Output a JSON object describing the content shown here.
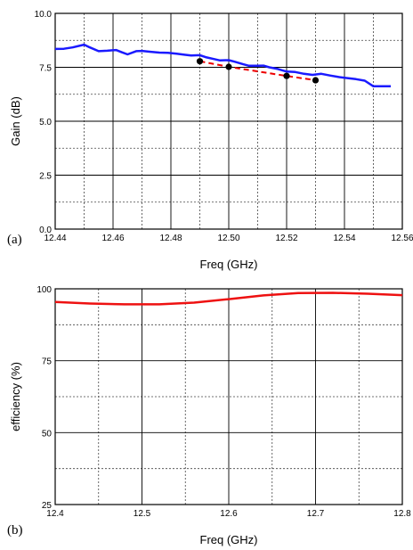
{
  "chart_data": [
    {
      "type": "line",
      "panel_label": "(a)",
      "xlabel": "Freq (GHz)",
      "ylabel": "Gain (dB)",
      "xlim": [
        12.44,
        12.56
      ],
      "ylim": [
        0.0,
        10.0
      ],
      "x_ticks": [
        "12.44",
        "12.46",
        "12.48",
        "12.50",
        "12.52",
        "12.54",
        "12.56"
      ],
      "y_ticks": [
        "0.0",
        "2.5",
        "5.0",
        "7.5",
        "10.0"
      ],
      "grid": true,
      "series": [
        {
          "style": "solid",
          "color": "#1a1aff",
          "x": [
            12.44,
            12.443,
            12.446,
            12.45,
            12.452,
            12.455,
            12.458,
            12.461,
            12.463,
            12.465,
            12.468,
            12.47,
            12.473,
            12.476,
            12.479,
            12.482,
            12.485,
            12.487,
            12.49,
            12.492,
            12.495,
            12.497,
            12.5,
            12.502,
            12.505,
            12.507,
            12.51,
            12.512,
            12.514,
            12.517,
            12.52,
            12.523,
            12.526,
            12.529,
            12.532,
            12.535,
            12.538,
            12.541,
            12.544,
            12.547,
            12.55,
            12.553,
            12.556
          ],
          "y": [
            8.35,
            8.36,
            8.42,
            8.55,
            8.42,
            8.25,
            8.27,
            8.3,
            8.2,
            8.1,
            8.25,
            8.26,
            8.22,
            8.18,
            8.17,
            8.13,
            8.08,
            8.05,
            8.06,
            7.97,
            7.88,
            7.82,
            7.83,
            7.76,
            7.64,
            7.57,
            7.57,
            7.58,
            7.5,
            7.42,
            7.3,
            7.28,
            7.2,
            7.15,
            7.2,
            7.12,
            7.05,
            7.0,
            6.95,
            6.88,
            6.62,
            6.62,
            6.62
          ]
        },
        {
          "style": "dashed",
          "color": "#ee0000",
          "marker_color": "#000000",
          "x": [
            12.49,
            12.5,
            12.52,
            12.53
          ],
          "y": [
            7.78,
            7.52,
            7.1,
            6.9
          ]
        }
      ]
    },
    {
      "type": "line",
      "panel_label": "(b)",
      "xlabel": "Freq (GHz)",
      "ylabel": "efficiency (%)",
      "xlim": [
        12.4,
        12.8
      ],
      "ylim": [
        25,
        100
      ],
      "x_ticks": [
        "12.4",
        "12.5",
        "12.6",
        "12.7",
        "12.8"
      ],
      "y_ticks": [
        "25",
        "50",
        "75",
        "100"
      ],
      "grid": true,
      "series": [
        {
          "style": "solid",
          "color": "#ee1111",
          "x": [
            12.4,
            12.44,
            12.48,
            12.52,
            12.56,
            12.6,
            12.64,
            12.68,
            12.72,
            12.76,
            12.8
          ],
          "y": [
            95.4,
            94.9,
            94.6,
            94.6,
            95.2,
            96.4,
            97.7,
            98.5,
            98.6,
            98.3,
            97.8
          ]
        }
      ]
    }
  ]
}
